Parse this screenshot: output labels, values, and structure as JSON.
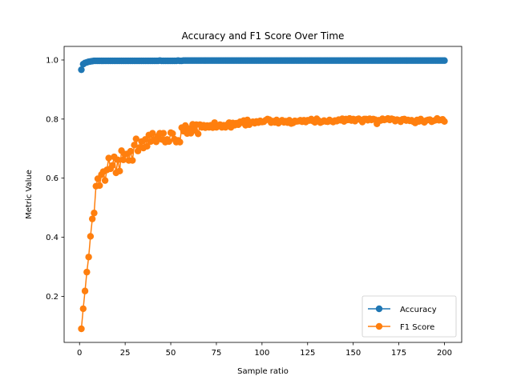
{
  "chart_data": {
    "type": "line",
    "title": "Accuracy and F1 Score Over Time",
    "xlabel": "Sample ratio",
    "ylabel": "Metric Value",
    "xlim": [
      -8.45,
      209.45
    ],
    "ylim": [
      0.044,
      1.046
    ],
    "xticks": [
      0,
      25,
      50,
      75,
      100,
      125,
      150,
      175,
      200
    ],
    "yticks": [
      0.2,
      0.4,
      0.6,
      0.8,
      1.0
    ],
    "ytick_labels": [
      "0.2",
      "0.4",
      "0.6",
      "0.8",
      "1.0"
    ],
    "grid": false,
    "legend_position": "lower right",
    "series": [
      {
        "name": "Accuracy",
        "color": "#1f77b4",
        "marker": "circle",
        "x_start": 1,
        "x_step": 1,
        "values": [
          0.967,
          0.986,
          0.99,
          0.992,
          0.994,
          0.995,
          0.996,
          0.997,
          0.997,
          0.997,
          0.997,
          0.997,
          0.997,
          0.997,
          0.997,
          0.997,
          0.997,
          0.997,
          0.997,
          0.997,
          0.997,
          0.997,
          0.997,
          0.997,
          0.997,
          0.997,
          0.997,
          0.997,
          0.997,
          0.997,
          0.997,
          0.997,
          0.997,
          0.997,
          0.997,
          0.997,
          0.997,
          0.997,
          0.997,
          0.997,
          0.997,
          0.997,
          0.997,
          0.998,
          0.997,
          0.997,
          0.997,
          0.997,
          0.997,
          0.997,
          0.997,
          0.997,
          0.997,
          0.998,
          0.997,
          0.997,
          0.998,
          0.998,
          0.998,
          0.998,
          0.998,
          0.998,
          0.998,
          0.998,
          0.998,
          0.998,
          0.998,
          0.998,
          0.998,
          0.998,
          0.998,
          0.998,
          0.998,
          0.998,
          0.998,
          0.998,
          0.998,
          0.998,
          0.998,
          0.998,
          0.998,
          0.998,
          0.998,
          0.998,
          0.998,
          0.998,
          0.998,
          0.998,
          0.998,
          0.998,
          0.998,
          0.998,
          0.998,
          0.998,
          0.998,
          0.998,
          0.998,
          0.998,
          0.998,
          0.998,
          0.998,
          0.998,
          0.998,
          0.998,
          0.998,
          0.998,
          0.998,
          0.998,
          0.998,
          0.998,
          0.998,
          0.998,
          0.998,
          0.998,
          0.998,
          0.998,
          0.998,
          0.998,
          0.998,
          0.998,
          0.998,
          0.998,
          0.998,
          0.998,
          0.998,
          0.998,
          0.998,
          0.998,
          0.998,
          0.998,
          0.998,
          0.998,
          0.998,
          0.998,
          0.998,
          0.998,
          0.998,
          0.998,
          0.998,
          0.998,
          0.998,
          0.998,
          0.998,
          0.998,
          0.998,
          0.998,
          0.998,
          0.998,
          0.998,
          0.998,
          0.998,
          0.998,
          0.998,
          0.998,
          0.998,
          0.998,
          0.998,
          0.998,
          0.998,
          0.998,
          0.998,
          0.998,
          0.998,
          0.998,
          0.998,
          0.998,
          0.998,
          0.998,
          0.998,
          0.998,
          0.998,
          0.998,
          0.998,
          0.998,
          0.998,
          0.998,
          0.998,
          0.998,
          0.998,
          0.998,
          0.998,
          0.998,
          0.998,
          0.998,
          0.998,
          0.998,
          0.998,
          0.998,
          0.998,
          0.998,
          0.998,
          0.998,
          0.998,
          0.998,
          0.998,
          0.998,
          0.998,
          0.998,
          0.998,
          0.998
        ]
      },
      {
        "name": "F1 Score",
        "color": "#ff7f0e",
        "marker": "circle",
        "x_start": 1,
        "x_step": 1,
        "values": [
          0.09,
          0.158,
          0.218,
          0.282,
          0.333,
          0.403,
          0.462,
          0.482,
          0.573,
          0.598,
          0.575,
          0.612,
          0.622,
          0.592,
          0.628,
          0.668,
          0.632,
          0.643,
          0.672,
          0.618,
          0.662,
          0.624,
          0.693,
          0.662,
          0.681,
          0.682,
          0.66,
          0.691,
          0.66,
          0.712,
          0.733,
          0.692,
          0.704,
          0.724,
          0.702,
          0.731,
          0.708,
          0.746,
          0.724,
          0.752,
          0.731,
          0.723,
          0.742,
          0.752,
          0.731,
          0.752,
          0.722,
          0.731,
          0.724,
          0.754,
          0.751,
          0.732,
          0.722,
          0.728,
          0.722,
          0.771,
          0.759,
          0.778,
          0.751,
          0.768,
          0.752,
          0.782,
          0.762,
          0.781,
          0.75,
          0.781,
          0.772,
          0.779,
          0.771,
          0.778,
          0.772,
          0.779,
          0.771,
          0.788,
          0.772,
          0.776,
          0.781,
          0.772,
          0.779,
          0.772,
          0.781,
          0.788,
          0.772,
          0.787,
          0.779,
          0.786,
          0.781,
          0.791,
          0.788,
          0.795,
          0.779,
          0.797,
          0.781,
          0.788,
          0.791,
          0.786,
          0.792,
          0.788,
          0.794,
          0.79,
          0.791,
          0.796,
          0.8,
          0.798,
          0.788,
          0.793,
          0.789,
          0.797,
          0.786,
          0.792,
          0.796,
          0.789,
          0.793,
          0.788,
          0.796,
          0.785,
          0.787,
          0.794,
          0.792,
          0.793,
          0.796,
          0.791,
          0.796,
          0.79,
          0.796,
          0.795,
          0.8,
          0.793,
          0.789,
          0.801,
          0.795,
          0.788,
          0.791,
          0.795,
          0.792,
          0.791,
          0.797,
          0.793,
          0.79,
          0.795,
          0.793,
          0.798,
          0.796,
          0.801,
          0.792,
          0.8,
          0.797,
          0.802,
          0.795,
          0.8,
          0.793,
          0.799,
          0.801,
          0.797,
          0.79,
          0.8,
          0.8,
          0.796,
          0.801,
          0.797,
          0.8,
          0.798,
          0.784,
          0.796,
          0.795,
          0.801,
          0.797,
          0.799,
          0.802,
          0.797,
          0.801,
          0.799,
          0.793,
          0.798,
          0.796,
          0.791,
          0.799,
          0.8,
          0.795,
          0.797,
          0.794,
          0.796,
          0.791,
          0.787,
          0.797,
          0.792,
          0.8,
          0.793,
          0.789,
          0.795,
          0.797,
          0.798,
          0.791,
          0.794,
          0.796,
          0.802,
          0.796,
          0.797,
          0.799,
          0.792
        ]
      }
    ]
  }
}
